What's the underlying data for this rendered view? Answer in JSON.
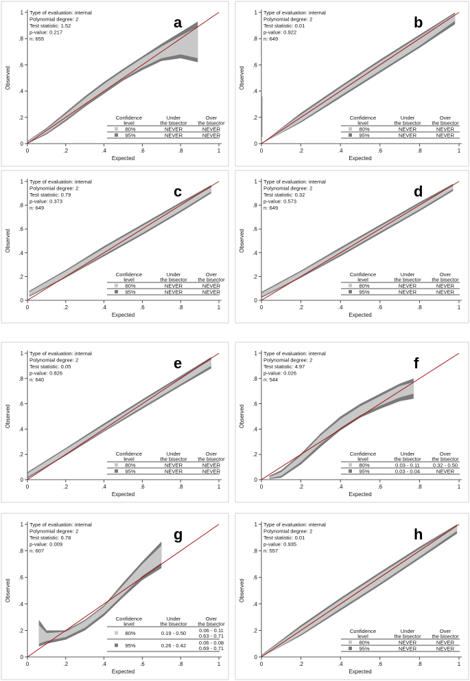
{
  "chart_data": [
    {
      "letter": "a",
      "type": "area",
      "xlabel": "Expected",
      "ylabel": "Observed",
      "xlim": [
        0,
        1
      ],
      "ylim": [
        0,
        1
      ],
      "xticks": [
        "0",
        ".2",
        ".4",
        ".6",
        ".8",
        "1"
      ],
      "yticks": [
        "0",
        ".2",
        ".4",
        ".6",
        ".8",
        "1"
      ],
      "info": [
        "Type of evaluation: internal",
        "Polynomial degree: 2",
        "Test statistic: 1.52",
        "p-value: 0.217",
        "n: 655"
      ],
      "table": {
        "headers": [
          [
            "Confidence",
            "level"
          ],
          [
            "Under",
            "the bisector"
          ],
          [
            "Over",
            "the bisector"
          ]
        ],
        "rows": [
          {
            "level": "80%",
            "under": [
              "NEVER"
            ],
            "over": [
              "NEVER"
            ]
          },
          {
            "level": "95%",
            "under": [
              "NEVER"
            ],
            "over": [
              "NEVER"
            ]
          }
        ]
      },
      "bands": {
        "x": [
          0.0,
          0.1,
          0.2,
          0.3,
          0.4,
          0.5,
          0.6,
          0.7,
          0.8,
          0.89
        ],
        "c95_low": [
          0.0,
          0.07,
          0.17,
          0.28,
          0.38,
          0.48,
          0.56,
          0.63,
          0.65,
          0.62
        ],
        "c80_low": [
          0.005,
          0.08,
          0.185,
          0.295,
          0.395,
          0.495,
          0.58,
          0.65,
          0.68,
          0.65
        ],
        "c80_high": [
          0.015,
          0.11,
          0.225,
          0.345,
          0.455,
          0.555,
          0.65,
          0.74,
          0.82,
          0.89
        ],
        "c95_high": [
          0.02,
          0.12,
          0.24,
          0.36,
          0.47,
          0.57,
          0.665,
          0.76,
          0.85,
          0.93
        ]
      }
    },
    {
      "letter": "b",
      "type": "area",
      "xlabel": "Expected",
      "ylabel": "Observed",
      "xlim": [
        0,
        1
      ],
      "ylim": [
        0,
        1
      ],
      "xticks": [
        "0",
        ".2",
        ".4",
        ".6",
        ".8",
        "1"
      ],
      "yticks": [
        "0",
        ".2",
        ".4",
        ".6",
        ".8",
        "1"
      ],
      "info": [
        "Type of evaluation: internal",
        "Polynomial degree: 2",
        "Test statistic: 0.01",
        "p-value: 0.922",
        "n: 649"
      ],
      "table": {
        "headers": [
          [
            "Confidence",
            "level"
          ],
          [
            "Under",
            "the bisector"
          ],
          [
            "Over",
            "the bisector"
          ]
        ],
        "rows": [
          {
            "level": "80%",
            "under": [
              "NEVER"
            ],
            "over": [
              "NEVER"
            ]
          },
          {
            "level": "95%",
            "under": [
              "NEVER"
            ],
            "over": [
              "NEVER"
            ]
          }
        ]
      },
      "spike": {
        "x": 0.0,
        "y0": 0.05,
        "y1": 0.36
      },
      "bands": {
        "x": [
          0.0,
          0.2,
          0.4,
          0.6,
          0.8,
          0.98
        ],
        "c95_low": [
          0.0,
          0.16,
          0.35,
          0.54,
          0.73,
          0.91
        ],
        "c80_low": [
          0.0,
          0.17,
          0.365,
          0.555,
          0.745,
          0.935
        ],
        "c80_high": [
          0.0,
          0.22,
          0.425,
          0.625,
          0.815,
          0.99
        ],
        "c95_high": [
          0.0,
          0.235,
          0.44,
          0.64,
          0.83,
          1.0
        ]
      }
    },
    {
      "letter": "c",
      "type": "area",
      "xlabel": "Expected",
      "ylabel": "Observed",
      "xlim": [
        0,
        1
      ],
      "ylim": [
        0,
        1
      ],
      "xticks": [
        "0",
        ".2",
        ".4",
        ".6",
        ".8",
        "1"
      ],
      "yticks": [
        "0",
        ".2",
        ".4",
        ".6",
        ".8",
        "1"
      ],
      "info": [
        "Type of evaluation: internal",
        "Polynomial degree: 2",
        "Test statistic: 0.79",
        "p-value: 0.373",
        "n: 649"
      ],
      "table": {
        "headers": [
          [
            "Confidence",
            "level"
          ],
          [
            "Under",
            "the bisector"
          ],
          [
            "Over",
            "the bisector"
          ]
        ],
        "rows": [
          {
            "level": "80%",
            "under": [
              "NEVER"
            ],
            "over": [
              "NEVER"
            ]
          },
          {
            "level": "95%",
            "under": [
              "NEVER"
            ],
            "over": [
              "NEVER"
            ]
          }
        ]
      },
      "bands": {
        "x": [
          0.01,
          0.2,
          0.4,
          0.6,
          0.8,
          0.96
        ],
        "c95_low": [
          0.03,
          0.19,
          0.37,
          0.55,
          0.74,
          0.9
        ],
        "c80_low": [
          0.04,
          0.2,
          0.385,
          0.565,
          0.755,
          0.915
        ],
        "c80_high": [
          0.07,
          0.245,
          0.44,
          0.625,
          0.81,
          0.95
        ],
        "c95_high": [
          0.08,
          0.255,
          0.455,
          0.64,
          0.825,
          0.97
        ]
      }
    },
    {
      "letter": "d",
      "type": "area",
      "xlabel": "Expected",
      "ylabel": "Observed",
      "xlim": [
        0,
        1
      ],
      "ylim": [
        0,
        1
      ],
      "xticks": [
        "0",
        ".2",
        ".4",
        ".6",
        ".8",
        "1"
      ],
      "yticks": [
        "0",
        ".2",
        ".4",
        ".6",
        ".8",
        "1"
      ],
      "info": [
        "Type of evaluation: internal",
        "Polynomial degree: 2",
        "Test statistic: 0.32",
        "p-value: 0.573",
        "n: 649"
      ],
      "table": {
        "headers": [
          [
            "Confidence",
            "level"
          ],
          [
            "Under",
            "the bisector"
          ],
          [
            "Over",
            "the bisector"
          ]
        ],
        "rows": [
          {
            "level": "80%",
            "under": [
              "NEVER"
            ],
            "over": [
              "NEVER"
            ]
          },
          {
            "level": "95%",
            "under": [
              "NEVER"
            ],
            "over": [
              "NEVER"
            ]
          }
        ]
      },
      "bands": {
        "x": [
          0.0,
          0.2,
          0.4,
          0.6,
          0.8,
          0.97
        ],
        "c95_low": [
          0.02,
          0.19,
          0.37,
          0.56,
          0.75,
          0.92
        ],
        "c80_low": [
          0.03,
          0.2,
          0.385,
          0.575,
          0.765,
          0.935
        ],
        "c80_high": [
          0.06,
          0.24,
          0.43,
          0.62,
          0.81,
          0.965
        ],
        "c95_high": [
          0.07,
          0.25,
          0.445,
          0.635,
          0.825,
          0.98
        ]
      }
    },
    {
      "letter": "e",
      "type": "area",
      "xlabel": "Expected",
      "ylabel": "Observed",
      "xlim": [
        0,
        1
      ],
      "ylim": [
        0,
        1
      ],
      "xticks": [
        "0",
        ".2",
        ".4",
        ".6",
        ".8",
        "1"
      ],
      "yticks": [
        "0",
        ".2",
        ".4",
        ".6",
        ".8",
        "1"
      ],
      "info": [
        "Type of evaluation: internal",
        "Polynomial degree: 2",
        "Test statistic: 0.05",
        "p-value: 0.826",
        "n: 640"
      ],
      "table": {
        "headers": [
          [
            "Confidence",
            "level"
          ],
          [
            "Under",
            "the bisector"
          ],
          [
            "Over",
            "the bisector"
          ]
        ],
        "rows": [
          {
            "level": "80%",
            "under": [
              "NEVER"
            ],
            "over": [
              "NEVER"
            ]
          },
          {
            "level": "95%",
            "under": [
              "NEVER"
            ],
            "over": [
              "NEVER"
            ]
          }
        ]
      },
      "bands": {
        "x": [
          0.0,
          0.2,
          0.4,
          0.6,
          0.8,
          0.96
        ],
        "c95_low": [
          0.01,
          0.19,
          0.38,
          0.56,
          0.74,
          0.88
        ],
        "c80_low": [
          0.02,
          0.2,
          0.39,
          0.575,
          0.755,
          0.9
        ],
        "c80_high": [
          0.05,
          0.24,
          0.43,
          0.62,
          0.805,
          0.95
        ],
        "c95_high": [
          0.06,
          0.25,
          0.445,
          0.635,
          0.82,
          0.97
        ]
      }
    },
    {
      "letter": "f",
      "type": "area",
      "xlabel": "Expected",
      "ylabel": "Observed",
      "xlim": [
        0,
        1
      ],
      "ylim": [
        0,
        1
      ],
      "xticks": [
        "0",
        ".2",
        ".4",
        ".6",
        ".8",
        "1"
      ],
      "yticks": [
        "0",
        ".2",
        ".4",
        ".6",
        ".8",
        "1"
      ],
      "info": [
        "Type of evaluation: internal",
        "Polynomial degree: 2",
        "Test statistic: 4.97",
        "p-value: 0.026",
        "n: 544"
      ],
      "table": {
        "headers": [
          [
            "Confidence",
            "level"
          ],
          [
            "Under",
            "the bisector"
          ],
          [
            "Over",
            "the bisector"
          ]
        ],
        "rows": [
          {
            "level": "80%",
            "under": [
              "0.03 - 0.11"
            ],
            "over": [
              "0.32 - 0.50"
            ]
          },
          {
            "level": "95%",
            "under": [
              "0.03 - 0.04"
            ],
            "over": [
              "NEVER"
            ]
          }
        ]
      },
      "bands": {
        "x": [
          0.04,
          0.1,
          0.2,
          0.3,
          0.4,
          0.5,
          0.6,
          0.7,
          0.77
        ],
        "c95_low": [
          0.005,
          0.015,
          0.12,
          0.26,
          0.39,
          0.49,
          0.56,
          0.62,
          0.64
        ],
        "c80_low": [
          0.01,
          0.03,
          0.14,
          0.285,
          0.41,
          0.51,
          0.585,
          0.65,
          0.68
        ],
        "c80_high": [
          0.02,
          0.06,
          0.19,
          0.35,
          0.48,
          0.58,
          0.66,
          0.74,
          0.77
        ],
        "c95_high": [
          0.03,
          0.075,
          0.205,
          0.365,
          0.5,
          0.6,
          0.68,
          0.76,
          0.8
        ]
      }
    },
    {
      "letter": "g",
      "type": "area",
      "xlabel": "Expected",
      "ylabel": "Observed",
      "xlim": [
        0,
        1
      ],
      "ylim": [
        0,
        1
      ],
      "xticks": [
        "0",
        ".2",
        ".4",
        ".6",
        ".8",
        "1"
      ],
      "yticks": [
        "0",
        ".2",
        ".4",
        ".6",
        ".8",
        "1"
      ],
      "info": [
        "Type of evaluation: internal",
        "Polynomial degree: 2",
        "Test statistic: 6.78",
        "p-value: 0.009",
        "n: 607"
      ],
      "table": {
        "headers": [
          [
            "Confidence",
            "level"
          ],
          [
            "Under",
            "the bisector"
          ],
          [
            "Over",
            "the bisector"
          ]
        ],
        "rows": [
          {
            "level": "80%",
            "under": [
              "0.19 - 0.50"
            ],
            "over": [
              "0.06 - 0.11",
              "0.63 - 0.71"
            ]
          },
          {
            "level": "95%",
            "under": [
              "0.26 - 0.42"
            ],
            "over": [
              "0.06 - 0.08",
              "0.69 - 0.71"
            ]
          }
        ]
      },
      "bands": {
        "x": [
          0.06,
          0.1,
          0.2,
          0.3,
          0.4,
          0.5,
          0.6,
          0.7
        ],
        "c95_low": [
          0.08,
          0.1,
          0.13,
          0.2,
          0.31,
          0.45,
          0.58,
          0.67
        ],
        "c80_low": [
          0.1,
          0.12,
          0.15,
          0.22,
          0.33,
          0.47,
          0.61,
          0.71
        ],
        "c80_high": [
          0.24,
          0.18,
          0.19,
          0.27,
          0.38,
          0.54,
          0.7,
          0.84
        ],
        "c95_high": [
          0.28,
          0.2,
          0.2,
          0.28,
          0.39,
          0.56,
          0.72,
          0.87
        ]
      }
    },
    {
      "letter": "h",
      "type": "area",
      "xlabel": "Expected",
      "ylabel": "Observed",
      "xlim": [
        0,
        1
      ],
      "ylim": [
        0,
        1
      ],
      "xticks": [
        "0",
        ".2",
        ".4",
        ".6",
        ".8",
        "1"
      ],
      "yticks": [
        "0",
        ".2",
        ".4",
        ".6",
        ".8",
        "1"
      ],
      "info": [
        "Type of evaluation: internal",
        "Polynomial degree: 2",
        "Test statistic: 0.01",
        "p-value: 0.935",
        "n: 557"
      ],
      "table": {
        "headers": [
          [
            "Confidence",
            "level"
          ],
          [
            "Under",
            "the bisector"
          ],
          [
            "Over",
            "the bisector"
          ]
        ],
        "rows": [
          {
            "level": "80%",
            "under": [
              "NEVER"
            ],
            "over": [
              "NEVER"
            ]
          },
          {
            "level": "95%",
            "under": [
              "NEVER"
            ],
            "over": [
              "NEVER"
            ]
          }
        ]
      },
      "bands": {
        "x": [
          0.0,
          0.2,
          0.4,
          0.6,
          0.8,
          0.99
        ],
        "c95_low": [
          0.0,
          0.16,
          0.35,
          0.54,
          0.74,
          0.93
        ],
        "c80_low": [
          0.0,
          0.17,
          0.365,
          0.555,
          0.755,
          0.95
        ],
        "c80_high": [
          0.01,
          0.225,
          0.43,
          0.625,
          0.815,
          0.985
        ],
        "c95_high": [
          0.015,
          0.24,
          0.445,
          0.64,
          0.83,
          1.0
        ]
      }
    }
  ],
  "style": {
    "outer_band_color": "#7a7a7a",
    "inner_band_color": "#c8c8c8",
    "bisector_color": "#a01010",
    "axis_color": "#222222",
    "panel_border_color": "#d0d0d0"
  }
}
